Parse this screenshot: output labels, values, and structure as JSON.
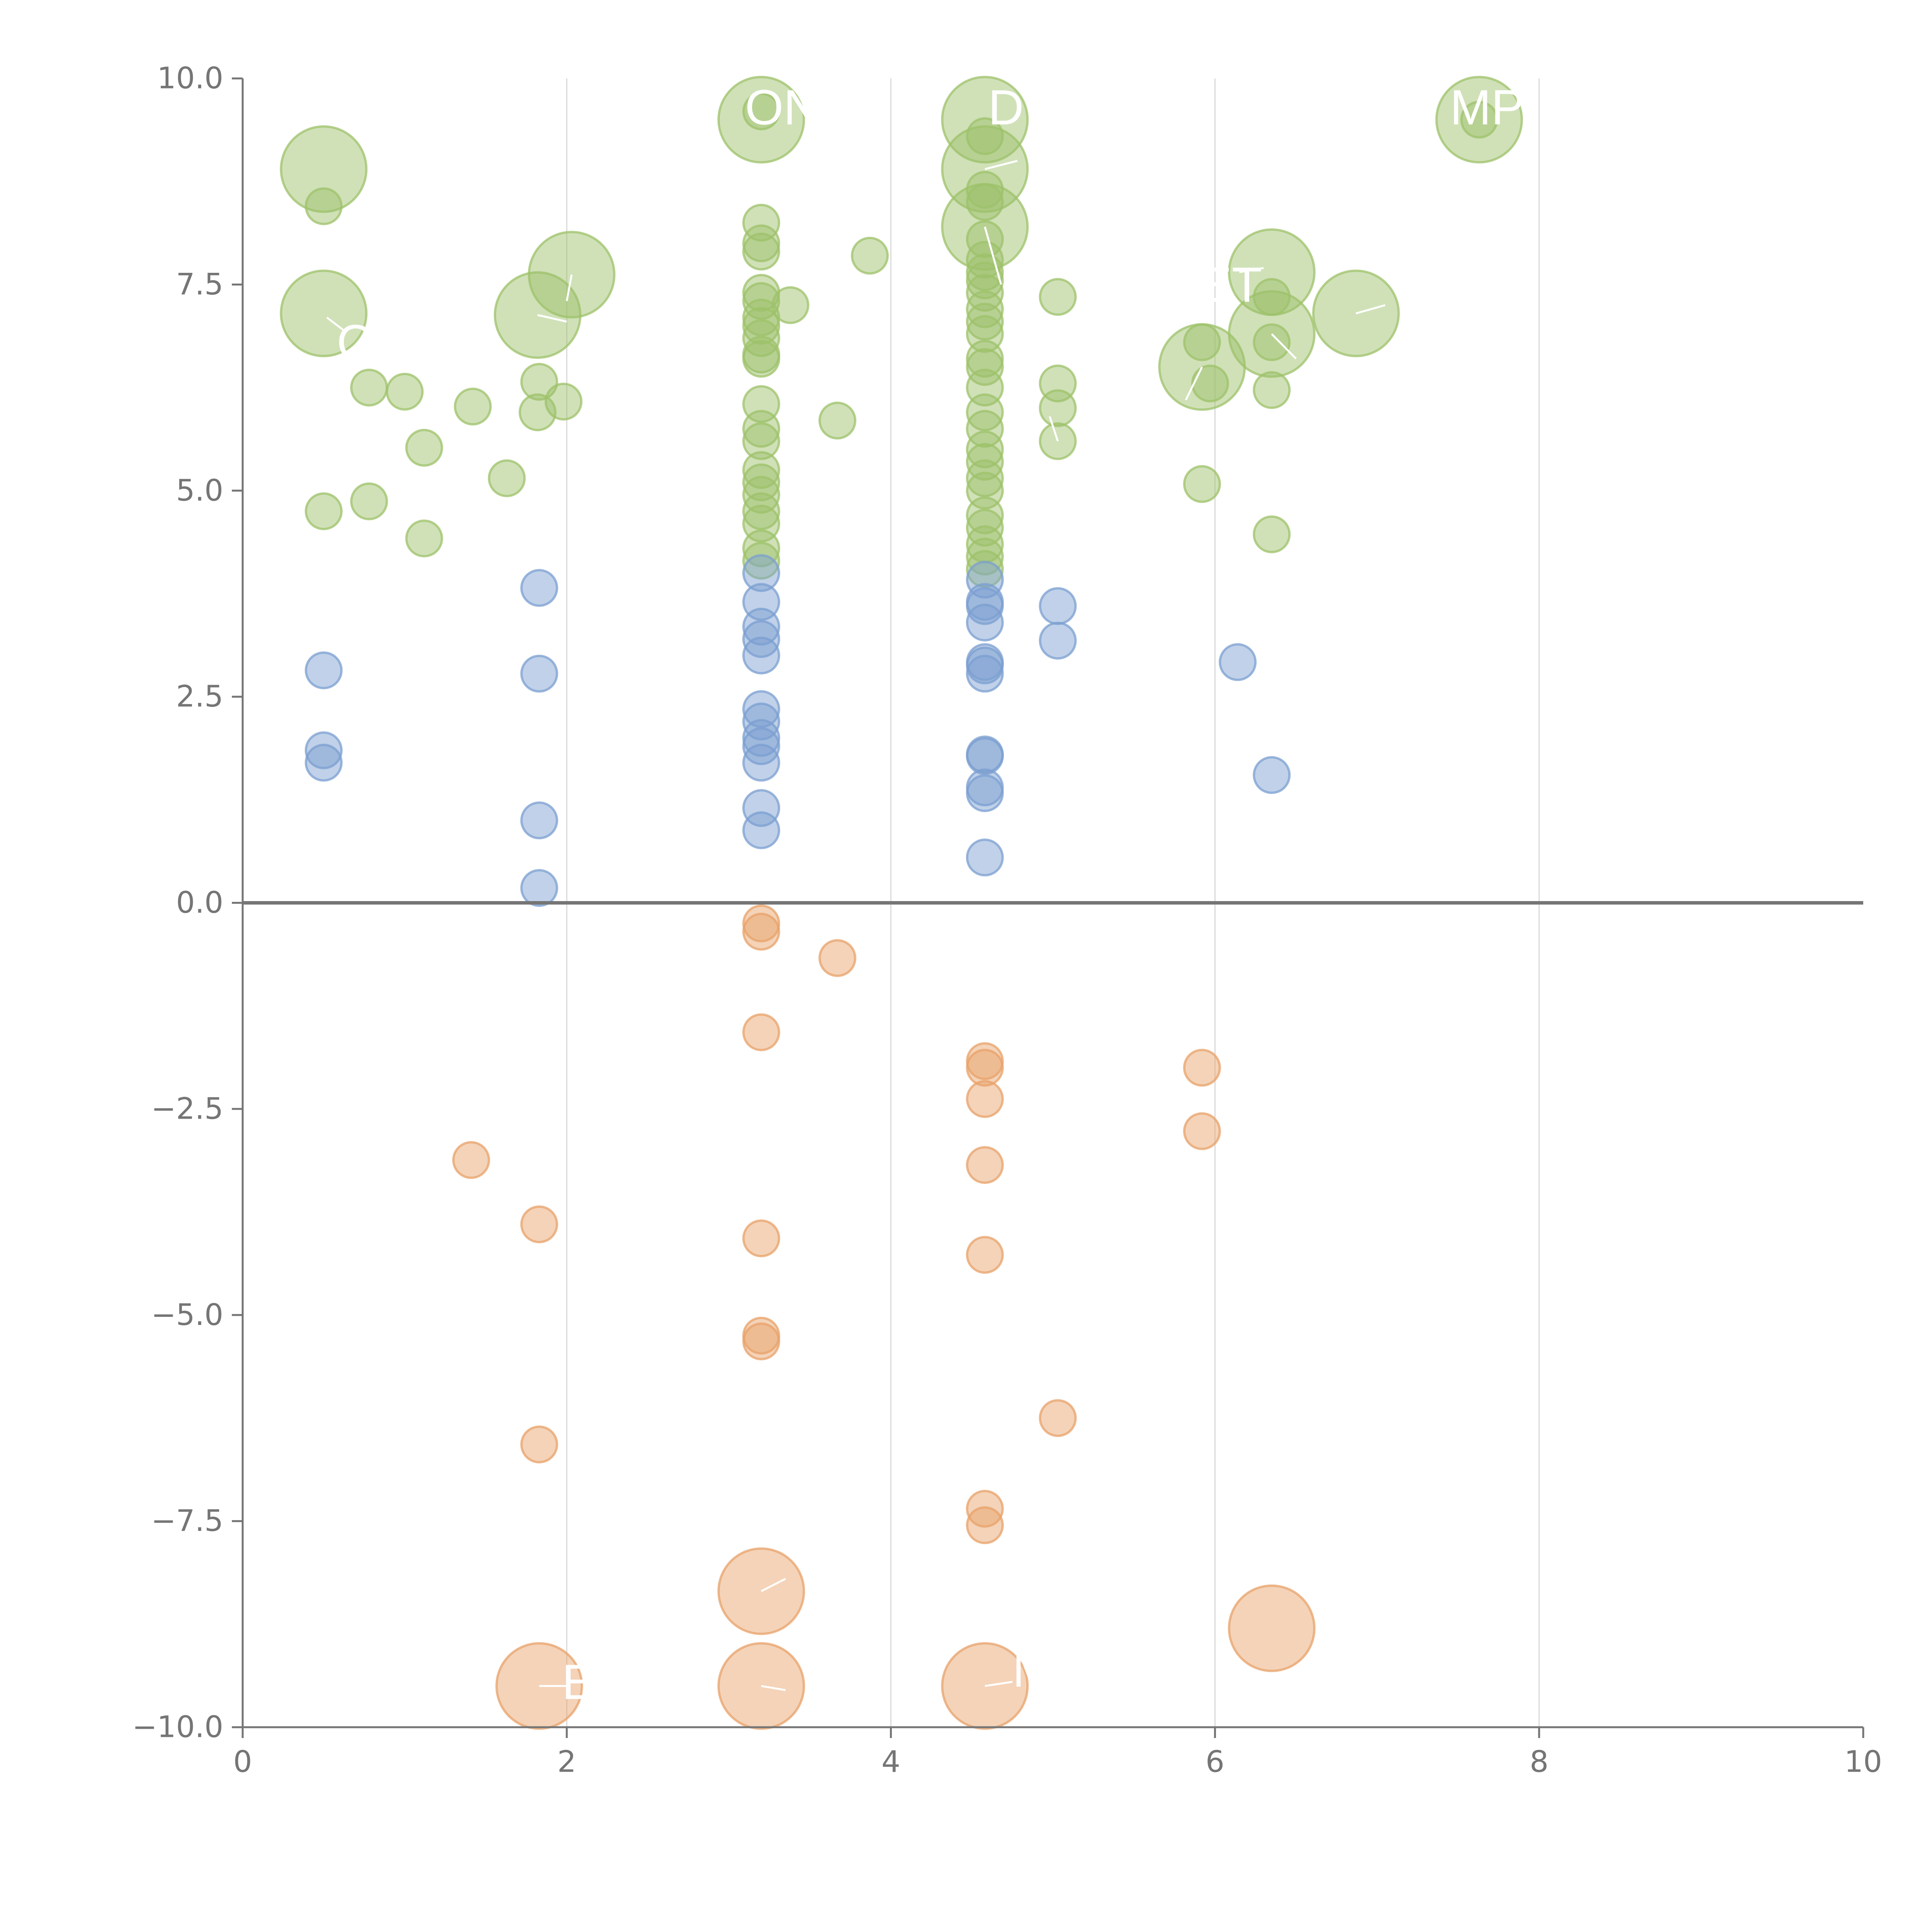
{
  "chart_data": {
    "type": "scatter",
    "title": "",
    "xlabel": "",
    "ylabel": "",
    "xlim": [
      0,
      10
    ],
    "ylim": [
      -10,
      10
    ],
    "x_ticks": [
      "0",
      "2",
      "4",
      "6",
      "8",
      "10"
    ],
    "x_tick_values": [
      0,
      2,
      4,
      6,
      8,
      10
    ],
    "y_ticks": [
      "10.0",
      "7.5",
      "5.0",
      "2.5",
      "0.0",
      "−2.5",
      "−5.0",
      "−7.5",
      "−10.0"
    ],
    "y_tick_values": [
      10,
      7.5,
      5,
      2.5,
      0,
      -2.5,
      -5,
      -7.5,
      -10
    ],
    "grid": "vertical",
    "legend": "none",
    "series": [
      {
        "name": "green",
        "color": "#9dc16a",
        "points": [
          {
            "x": 0.5,
            "y": 8.9,
            "r": 2.4
          },
          {
            "x": 0.5,
            "y": 8.45,
            "r": 1
          },
          {
            "x": 0.5,
            "y": 7.15,
            "r": 2.4
          },
          {
            "x": 0.78,
            "y": 6.25,
            "r": 1
          },
          {
            "x": 1.0,
            "y": 6.2,
            "r": 1
          },
          {
            "x": 1.42,
            "y": 6.02,
            "r": 1
          },
          {
            "x": 1.12,
            "y": 5.52,
            "r": 1
          },
          {
            "x": 1.63,
            "y": 5.15,
            "r": 1
          },
          {
            "x": 0.5,
            "y": 4.75,
            "r": 1
          },
          {
            "x": 0.78,
            "y": 4.87,
            "r": 1
          },
          {
            "x": 1.12,
            "y": 4.42,
            "r": 1
          },
          {
            "x": 1.82,
            "y": 7.13,
            "r": 2.4
          },
          {
            "x": 2.03,
            "y": 7.62,
            "r": 2.4
          },
          {
            "x": 1.83,
            "y": 6.32,
            "r": 1
          },
          {
            "x": 1.98,
            "y": 6.08,
            "r": 1
          },
          {
            "x": 1.82,
            "y": 5.95,
            "r": 1
          },
          {
            "x": 3.2,
            "y": 9.5,
            "r": 2.4
          },
          {
            "x": 3.2,
            "y": 9.6,
            "r": 1
          },
          {
            "x": 3.2,
            "y": 8.25,
            "r": 1
          },
          {
            "x": 3.2,
            "y": 8.0,
            "r": 1
          },
          {
            "x": 3.2,
            "y": 7.9,
            "r": 1
          },
          {
            "x": 3.2,
            "y": 7.4,
            "r": 1
          },
          {
            "x": 3.2,
            "y": 7.3,
            "r": 1
          },
          {
            "x": 3.2,
            "y": 7.1,
            "r": 1
          },
          {
            "x": 3.2,
            "y": 7.0,
            "r": 1
          },
          {
            "x": 3.2,
            "y": 6.85,
            "r": 1
          },
          {
            "x": 3.2,
            "y": 6.65,
            "r": 1
          },
          {
            "x": 3.2,
            "y": 6.6,
            "r": 1
          },
          {
            "x": 3.2,
            "y": 6.05,
            "r": 1
          },
          {
            "x": 3.2,
            "y": 5.75,
            "r": 1
          },
          {
            "x": 3.2,
            "y": 5.6,
            "r": 1
          },
          {
            "x": 3.2,
            "y": 5.25,
            "r": 1
          },
          {
            "x": 3.2,
            "y": 5.1,
            "r": 1
          },
          {
            "x": 3.2,
            "y": 4.95,
            "r": 1
          },
          {
            "x": 3.2,
            "y": 4.75,
            "r": 1
          },
          {
            "x": 3.2,
            "y": 4.6,
            "r": 1
          },
          {
            "x": 3.2,
            "y": 4.3,
            "r": 1
          },
          {
            "x": 3.2,
            "y": 4.15,
            "r": 1
          },
          {
            "x": 3.38,
            "y": 7.25,
            "r": 1
          },
          {
            "x": 3.67,
            "y": 5.85,
            "r": 1
          },
          {
            "x": 3.87,
            "y": 7.85,
            "r": 1
          },
          {
            "x": 4.58,
            "y": 9.5,
            "r": 2.4
          },
          {
            "x": 4.58,
            "y": 9.3,
            "r": 1
          },
          {
            "x": 4.58,
            "y": 8.9,
            "r": 2.4
          },
          {
            "x": 4.58,
            "y": 8.65,
            "r": 1
          },
          {
            "x": 4.58,
            "y": 8.5,
            "r": 1
          },
          {
            "x": 4.58,
            "y": 8.2,
            "r": 2.4
          },
          {
            "x": 4.58,
            "y": 8.05,
            "r": 1
          },
          {
            "x": 4.58,
            "y": 7.8,
            "r": 1
          },
          {
            "x": 4.58,
            "y": 7.65,
            "r": 1
          },
          {
            "x": 4.58,
            "y": 7.55,
            "r": 1
          },
          {
            "x": 4.58,
            "y": 7.4,
            "r": 1
          },
          {
            "x": 4.58,
            "y": 7.2,
            "r": 1
          },
          {
            "x": 4.58,
            "y": 7.05,
            "r": 1
          },
          {
            "x": 4.58,
            "y": 6.9,
            "r": 1
          },
          {
            "x": 4.58,
            "y": 6.6,
            "r": 1
          },
          {
            "x": 4.58,
            "y": 6.5,
            "r": 1
          },
          {
            "x": 4.58,
            "y": 6.25,
            "r": 1
          },
          {
            "x": 4.58,
            "y": 5.95,
            "r": 1
          },
          {
            "x": 4.58,
            "y": 5.75,
            "r": 1
          },
          {
            "x": 4.58,
            "y": 5.5,
            "r": 1
          },
          {
            "x": 4.58,
            "y": 5.35,
            "r": 1
          },
          {
            "x": 4.58,
            "y": 5.15,
            "r": 1
          },
          {
            "x": 4.58,
            "y": 5.0,
            "r": 1
          },
          {
            "x": 4.58,
            "y": 4.7,
            "r": 1
          },
          {
            "x": 4.58,
            "y": 4.55,
            "r": 1
          },
          {
            "x": 4.58,
            "y": 4.35,
            "r": 1
          },
          {
            "x": 4.58,
            "y": 4.2,
            "r": 1
          },
          {
            "x": 4.58,
            "y": 4.05,
            "r": 1
          },
          {
            "x": 5.03,
            "y": 7.35,
            "r": 1
          },
          {
            "x": 5.03,
            "y": 6.3,
            "r": 1
          },
          {
            "x": 5.03,
            "y": 6.0,
            "r": 1
          },
          {
            "x": 5.03,
            "y": 5.6,
            "r": 1
          },
          {
            "x": 5.92,
            "y": 6.5,
            "r": 2.4
          },
          {
            "x": 5.92,
            "y": 6.8,
            "r": 1
          },
          {
            "x": 5.97,
            "y": 6.3,
            "r": 1
          },
          {
            "x": 5.92,
            "y": 5.08,
            "r": 1
          },
          {
            "x": 6.35,
            "y": 7.65,
            "r": 2.4
          },
          {
            "x": 6.35,
            "y": 6.9,
            "r": 2.4
          },
          {
            "x": 6.35,
            "y": 7.35,
            "r": 1
          },
          {
            "x": 6.35,
            "y": 6.8,
            "r": 1
          },
          {
            "x": 6.35,
            "y": 6.22,
            "r": 1
          },
          {
            "x": 6.35,
            "y": 4.47,
            "r": 1
          },
          {
            "x": 6.87,
            "y": 7.15,
            "r": 2.4
          },
          {
            "x": 7.63,
            "y": 9.5,
            "r": 2.4
          },
          {
            "x": 7.63,
            "y": 9.5,
            "r": 1
          }
        ]
      },
      {
        "name": "blue",
        "color": "#7b9fd0",
        "points": [
          {
            "x": 0.5,
            "y": 2.82,
            "r": 1
          },
          {
            "x": 0.5,
            "y": 1.85,
            "r": 1
          },
          {
            "x": 0.5,
            "y": 1.7,
            "r": 1
          },
          {
            "x": 1.83,
            "y": 3.82,
            "r": 1
          },
          {
            "x": 1.83,
            "y": 2.78,
            "r": 1
          },
          {
            "x": 1.83,
            "y": 1.0,
            "r": 1
          },
          {
            "x": 1.83,
            "y": 0.18,
            "r": 1
          },
          {
            "x": 3.2,
            "y": 4.0,
            "r": 1
          },
          {
            "x": 3.2,
            "y": 3.65,
            "r": 1
          },
          {
            "x": 3.2,
            "y": 3.35,
            "r": 1
          },
          {
            "x": 3.2,
            "y": 3.2,
            "r": 1
          },
          {
            "x": 3.2,
            "y": 3.0,
            "r": 1
          },
          {
            "x": 3.2,
            "y": 2.35,
            "r": 1
          },
          {
            "x": 3.2,
            "y": 2.2,
            "r": 1
          },
          {
            "x": 3.2,
            "y": 2.0,
            "r": 1
          },
          {
            "x": 3.2,
            "y": 1.9,
            "r": 1
          },
          {
            "x": 3.2,
            "y": 1.7,
            "r": 1
          },
          {
            "x": 3.2,
            "y": 1.15,
            "r": 1
          },
          {
            "x": 3.2,
            "y": 0.88,
            "r": 1
          },
          {
            "x": 4.58,
            "y": 3.92,
            "r": 1
          },
          {
            "x": 4.58,
            "y": 3.65,
            "r": 1
          },
          {
            "x": 4.58,
            "y": 3.6,
            "r": 1
          },
          {
            "x": 4.58,
            "y": 3.4,
            "r": 1
          },
          {
            "x": 4.58,
            "y": 2.92,
            "r": 1
          },
          {
            "x": 4.58,
            "y": 2.88,
            "r": 1
          },
          {
            "x": 4.58,
            "y": 2.78,
            "r": 1
          },
          {
            "x": 4.58,
            "y": 1.8,
            "r": 1
          },
          {
            "x": 4.58,
            "y": 1.78,
            "r": 1
          },
          {
            "x": 4.58,
            "y": 1.4,
            "r": 1
          },
          {
            "x": 4.58,
            "y": 1.33,
            "r": 1
          },
          {
            "x": 4.58,
            "y": 0.55,
            "r": 1
          },
          {
            "x": 5.03,
            "y": 3.6,
            "r": 1
          },
          {
            "x": 5.03,
            "y": 3.18,
            "r": 1
          },
          {
            "x": 6.14,
            "y": 2.92,
            "r": 1
          },
          {
            "x": 6.35,
            "y": 1.55,
            "r": 1
          }
        ]
      },
      {
        "name": "orange",
        "color": "#e8a26a",
        "points": [
          {
            "x": 1.41,
            "y": -3.12,
            "r": 1
          },
          {
            "x": 1.83,
            "y": -3.9,
            "r": 1
          },
          {
            "x": 1.83,
            "y": -6.57,
            "r": 1
          },
          {
            "x": 1.83,
            "y": -9.5,
            "r": 2.4
          },
          {
            "x": 3.2,
            "y": -0.25,
            "r": 1
          },
          {
            "x": 3.2,
            "y": -0.35,
            "r": 1
          },
          {
            "x": 3.2,
            "y": -1.57,
            "r": 1
          },
          {
            "x": 3.2,
            "y": -4.07,
            "r": 1
          },
          {
            "x": 3.2,
            "y": -5.25,
            "r": 1
          },
          {
            "x": 3.2,
            "y": -5.32,
            "r": 1
          },
          {
            "x": 3.2,
            "y": -8.35,
            "r": 2.4
          },
          {
            "x": 3.2,
            "y": -9.5,
            "r": 2.4
          },
          {
            "x": 3.67,
            "y": -0.67,
            "r": 1
          },
          {
            "x": 4.58,
            "y": -1.92,
            "r": 1
          },
          {
            "x": 4.58,
            "y": -2.0,
            "r": 1
          },
          {
            "x": 4.58,
            "y": -2.38,
            "r": 1
          },
          {
            "x": 4.58,
            "y": -3.18,
            "r": 1
          },
          {
            "x": 4.58,
            "y": -4.27,
            "r": 1
          },
          {
            "x": 4.58,
            "y": -7.35,
            "r": 1
          },
          {
            "x": 4.58,
            "y": -7.55,
            "r": 1
          },
          {
            "x": 4.58,
            "y": -9.5,
            "r": 2.4
          },
          {
            "x": 5.03,
            "y": -6.25,
            "r": 1
          },
          {
            "x": 5.92,
            "y": -2.0,
            "r": 1
          },
          {
            "x": 5.92,
            "y": -2.77,
            "r": 1
          },
          {
            "x": 6.35,
            "y": -8.8,
            "r": 2.4
          }
        ]
      }
    ],
    "annotations": [
      {
        "text": "ON",
        "x": 3.1,
        "y": 9.6
      },
      {
        "text": "D",
        "x": 4.6,
        "y": 9.6
      },
      {
        "text": "MP",
        "x": 7.45,
        "y": 9.6
      },
      {
        "text": "ET",
        "x": 5.9,
        "y": 7.45
      },
      {
        "text": "C",
        "x": 0.58,
        "y": 6.75
      },
      {
        "text": "E",
        "x": 1.97,
        "y": -9.5
      },
      {
        "text": "M",
        "x": 4.75,
        "y": -9.35
      }
    ],
    "leader_lines": [
      [
        0.52,
        7.1,
        0.62,
        6.95
      ],
      [
        1.82,
        7.13,
        2.0,
        7.05
      ],
      [
        2.03,
        7.62,
        2.0,
        7.3
      ],
      [
        4.58,
        8.9,
        4.78,
        9.0
      ],
      [
        4.58,
        8.2,
        4.68,
        7.5
      ],
      [
        5.03,
        5.6,
        4.98,
        5.9
      ],
      [
        5.92,
        6.5,
        5.82,
        6.1
      ],
      [
        6.35,
        6.9,
        6.5,
        6.6
      ],
      [
        6.87,
        7.15,
        7.05,
        7.25
      ],
      [
        6.15,
        7.65,
        6.3,
        7.7
      ],
      [
        1.83,
        -9.5,
        2.0,
        -9.5
      ],
      [
        3.2,
        -8.35,
        3.35,
        -8.2
      ],
      [
        3.2,
        -9.5,
        3.35,
        -9.55
      ],
      [
        4.58,
        -9.5,
        4.75,
        -9.45
      ]
    ]
  }
}
